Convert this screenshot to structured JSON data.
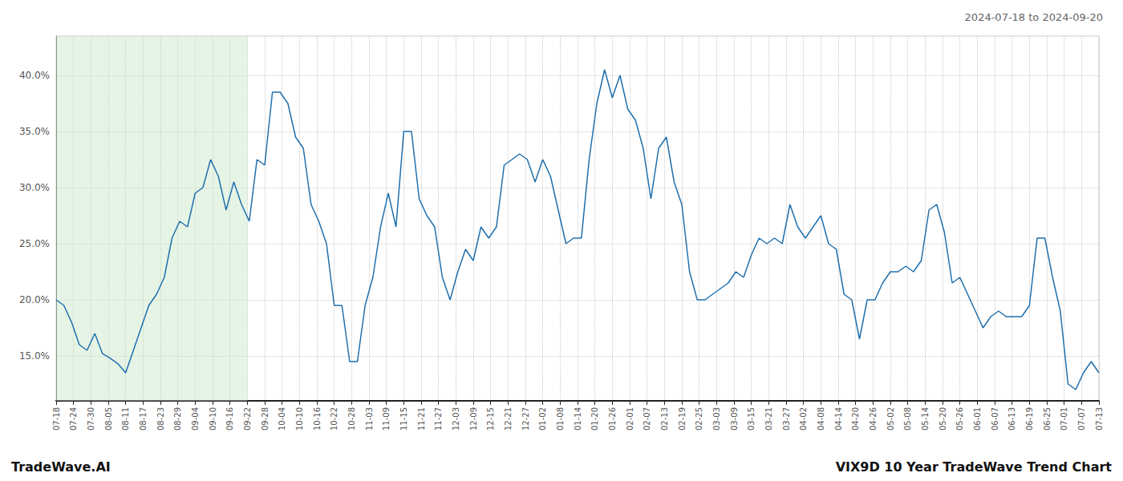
{
  "chart_data": {
    "type": "line",
    "title": "2024-07-18 to 2024-09-20",
    "annotations": [
      "TradeWave.AI",
      "VIX9D 10 Year TradeWave Trend Chart"
    ],
    "color": "#1f6fad",
    "grid": true,
    "shaded_span": {
      "xstart": 0,
      "xend": 11,
      "color": "#c8e6c8"
    },
    "xlim": [
      0,
      60
    ],
    "xticks": [
      {
        "value": 0,
        "label": "07-18"
      },
      {
        "value": 1,
        "label": "07-24"
      },
      {
        "value": 2,
        "label": "07-30"
      },
      {
        "value": 3,
        "label": "08-05"
      },
      {
        "value": 4,
        "label": "08-11"
      },
      {
        "value": 5,
        "label": "08-17"
      },
      {
        "value": 6,
        "label": "08-23"
      },
      {
        "value": 7,
        "label": "08-29"
      },
      {
        "value": 8,
        "label": "09-04"
      },
      {
        "value": 9,
        "label": "09-10"
      },
      {
        "value": 10,
        "label": "09-16"
      },
      {
        "value": 11,
        "label": "09-22"
      },
      {
        "value": 12,
        "label": "09-28"
      },
      {
        "value": 13,
        "label": "10-04"
      },
      {
        "value": 14,
        "label": "10-10"
      },
      {
        "value": 15,
        "label": "10-16"
      },
      {
        "value": 16,
        "label": "10-22"
      },
      {
        "value": 17,
        "label": "10-28"
      },
      {
        "value": 18,
        "label": "11-03"
      },
      {
        "value": 19,
        "label": "11-09"
      },
      {
        "value": 20,
        "label": "11-15"
      },
      {
        "value": 21,
        "label": "11-21"
      },
      {
        "value": 22,
        "label": "11-27"
      },
      {
        "value": 23,
        "label": "12-03"
      },
      {
        "value": 24,
        "label": "12-09"
      },
      {
        "value": 25,
        "label": "12-15"
      },
      {
        "value": 26,
        "label": "12-21"
      },
      {
        "value": 27,
        "label": "12-27"
      },
      {
        "value": 28,
        "label": "01-02"
      },
      {
        "value": 29,
        "label": "01-08"
      },
      {
        "value": 30,
        "label": "01-14"
      },
      {
        "value": 31,
        "label": "01-20"
      },
      {
        "value": 32,
        "label": "01-26"
      },
      {
        "value": 33,
        "label": "02-01"
      },
      {
        "value": 34,
        "label": "02-07"
      },
      {
        "value": 35,
        "label": "02-13"
      },
      {
        "value": 36,
        "label": "02-19"
      },
      {
        "value": 37,
        "label": "02-25"
      },
      {
        "value": 38,
        "label": "03-03"
      },
      {
        "value": 39,
        "label": "03-09"
      },
      {
        "value": 40,
        "label": "03-15"
      },
      {
        "value": 41,
        "label": "03-21"
      },
      {
        "value": 42,
        "label": "03-27"
      },
      {
        "value": 43,
        "label": "04-02"
      },
      {
        "value": 44,
        "label": "04-08"
      },
      {
        "value": 45,
        "label": "04-14"
      },
      {
        "value": 46,
        "label": "04-20"
      },
      {
        "value": 47,
        "label": "04-26"
      },
      {
        "value": 48,
        "label": "05-02"
      },
      {
        "value": 49,
        "label": "05-08"
      },
      {
        "value": 50,
        "label": "05-14"
      },
      {
        "value": 51,
        "label": "05-20"
      },
      {
        "value": 52,
        "label": "05-26"
      },
      {
        "value": 53,
        "label": "06-01"
      },
      {
        "value": 54,
        "label": "06-07"
      },
      {
        "value": 55,
        "label": "06-13"
      },
      {
        "value": 56,
        "label": "06-19"
      },
      {
        "value": 57,
        "label": "06-25"
      },
      {
        "value": 58,
        "label": "07-01"
      },
      {
        "value": 59,
        "label": "07-07"
      },
      {
        "value": 60,
        "label": "07-13"
      }
    ],
    "ylim": [
      11.0,
      43.5
    ],
    "yticks": [
      {
        "value": 15.0,
        "label": "15.0%"
      },
      {
        "value": 20.0,
        "label": "20.0%"
      },
      {
        "value": 25.0,
        "label": "25.0%"
      },
      {
        "value": 30.0,
        "label": "30.0%"
      },
      {
        "value": 35.0,
        "label": "35.0%"
      },
      {
        "value": 40.0,
        "label": "40.0%"
      }
    ],
    "x": [
      0,
      0.4444,
      0.8889,
      1.3333,
      1.7778,
      2.2222,
      2.6667,
      3.1111,
      3.5556,
      4,
      4.4444,
      4.8889,
      5.3333,
      5.7778,
      6.2222,
      6.6667,
      7.1111,
      7.5556,
      8,
      8.4444,
      8.8889,
      9.3333,
      9.7778,
      10.2222,
      10.6667,
      11.1111,
      11.5556,
      12,
      12.4444,
      12.8889,
      13.3333,
      13.7778,
      14.2222,
      14.6667,
      15.1111,
      15.5556,
      16,
      16.4444,
      16.8889,
      17.3333,
      17.7778,
      18.2222,
      18.6667,
      19.1111,
      19.5556,
      20,
      20.4444,
      20.8889,
      21.3333,
      21.7778,
      22.2222,
      22.6667,
      23.1111,
      23.5556,
      24,
      24.4444,
      24.8889,
      25.3333,
      25.7778,
      26.2222,
      26.6667,
      27.1111,
      27.5556,
      28,
      28.4444,
      28.8889,
      29.3333,
      29.7778,
      30.2222,
      30.6667,
      31.1111,
      31.5556,
      32,
      32.4444,
      32.8889,
      33.3333,
      33.7778,
      34.2222,
      34.6667,
      35.1111,
      35.5556,
      36,
      36.4444,
      36.8889,
      37.3333,
      37.7778,
      38.2222,
      38.6667,
      39.1111,
      39.5556,
      40,
      40.4444,
      40.8889,
      41.3333,
      41.7778,
      42.2222,
      42.6667,
      43.1111,
      43.5556,
      44,
      44.4444,
      44.8889,
      45.3333,
      45.7778,
      46.2222,
      46.6667,
      47.1111,
      47.5556,
      48,
      48.4444,
      48.8889,
      49.3333,
      49.7778,
      50.2222,
      50.6667,
      51.1111,
      51.5556,
      52,
      52.4444,
      52.8889,
      53.3333,
      53.7778,
      54.2222,
      54.6667,
      55.1111,
      55.5556,
      56,
      56.4444,
      56.8889,
      57.3333,
      57.7778,
      58.2222,
      58.6667,
      59.1111,
      59.5556,
      60
    ],
    "values": [
      20.0,
      19.5,
      18.0,
      16.0,
      15.5,
      17.0,
      15.2,
      14.8,
      14.3,
      13.5,
      15.5,
      17.5,
      19.5,
      20.5,
      22.0,
      25.5,
      27.0,
      26.5,
      29.5,
      30.0,
      32.5,
      31.0,
      28.0,
      30.5,
      28.5,
      27.0,
      32.5,
      32.0,
      38.5,
      38.5,
      37.5,
      34.5,
      33.5,
      28.5,
      27.0,
      25.0,
      19.5,
      19.5,
      14.5,
      14.5,
      19.5,
      22.0,
      26.5,
      29.5,
      26.5,
      35.0,
      35.0,
      29.0,
      27.5,
      26.5,
      22.0,
      20.0,
      22.5,
      24.5,
      23.5,
      26.5,
      25.5,
      26.5,
      32.0,
      32.5,
      33.0,
      32.5,
      30.5,
      32.5,
      31.0,
      28.0,
      25.0,
      25.5,
      25.5,
      32.5,
      37.5,
      40.5,
      38.0,
      40.0,
      37.0,
      36.0,
      33.5,
      29.0,
      33.5,
      34.5,
      30.5,
      28.5,
      22.5,
      20.0,
      20.0,
      20.5,
      21.0,
      21.5,
      22.5,
      22.0,
      24.0,
      25.5,
      25.0,
      25.5,
      25.0,
      28.5,
      26.5,
      25.5,
      26.5,
      27.5,
      25.0,
      24.5,
      20.5,
      20.0,
      16.5,
      20.0,
      20.0,
      21.5,
      22.5,
      22.5,
      23.0,
      22.5,
      23.5,
      28.0,
      28.5,
      26.0,
      21.5,
      22.0,
      20.5,
      19.0,
      17.5,
      18.5,
      19.0,
      18.5,
      18.5,
      18.5,
      19.5,
      25.5,
      25.5,
      22.0,
      19.0,
      12.5,
      12.0,
      13.5,
      14.5,
      13.5
    ]
  }
}
